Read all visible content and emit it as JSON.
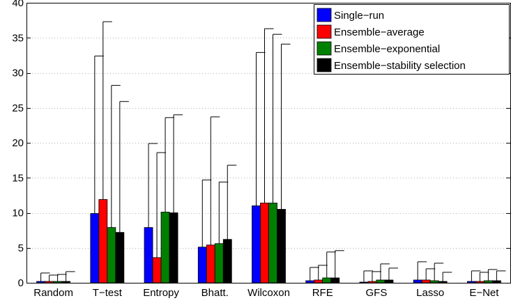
{
  "chart_data": {
    "type": "bar",
    "title": "",
    "xlabel": "",
    "ylabel": "",
    "ylim": [
      0,
      40
    ],
    "yticks": [
      "0",
      "5",
      "10",
      "15",
      "20",
      "25",
      "30",
      "35",
      "40"
    ],
    "grid": "horizontal dotted",
    "legend_position": "top-right",
    "categories": [
      "Random",
      "T−test",
      "Entropy",
      "Bhatt.",
      "Wilcoxon",
      "RFE",
      "GFS",
      "Lasso",
      "E−Net"
    ],
    "series": [
      {
        "name": "Single−run",
        "color": "#0000ff",
        "values": [
          0.2,
          9.9,
          7.9,
          5.1,
          11.0,
          0.3,
          0.1,
          0.4,
          0.2
        ],
        "error_upper": [
          1.4,
          32.4,
          19.9,
          14.7,
          32.9,
          2.2,
          1.7,
          3.0,
          1.7
        ]
      },
      {
        "name": "Ensemble−average",
        "color": "#ff0000",
        "values": [
          0.2,
          11.9,
          3.6,
          5.4,
          11.4,
          0.4,
          0.2,
          0.4,
          0.2
        ],
        "error_upper": [
          1.1,
          37.3,
          18.6,
          23.7,
          36.3,
          2.5,
          1.6,
          2.0,
          1.5
        ]
      },
      {
        "name": "Ensemble−exponential",
        "color": "#008000",
        "values": [
          0.2,
          7.9,
          10.1,
          5.6,
          11.4,
          0.7,
          0.4,
          0.3,
          0.3
        ],
        "error_upper": [
          1.2,
          28.2,
          23.6,
          14.4,
          35.5,
          4.4,
          2.7,
          2.8,
          1.9
        ]
      },
      {
        "name": "Ensemble−stability selection",
        "color": "#000000",
        "values": [
          0.2,
          7.2,
          10.0,
          6.2,
          10.5,
          0.7,
          0.4,
          0.2,
          0.3
        ],
        "error_upper": [
          1.6,
          25.9,
          24.0,
          16.8,
          34.1,
          4.6,
          2.1,
          1.5,
          1.7
        ]
      }
    ]
  }
}
